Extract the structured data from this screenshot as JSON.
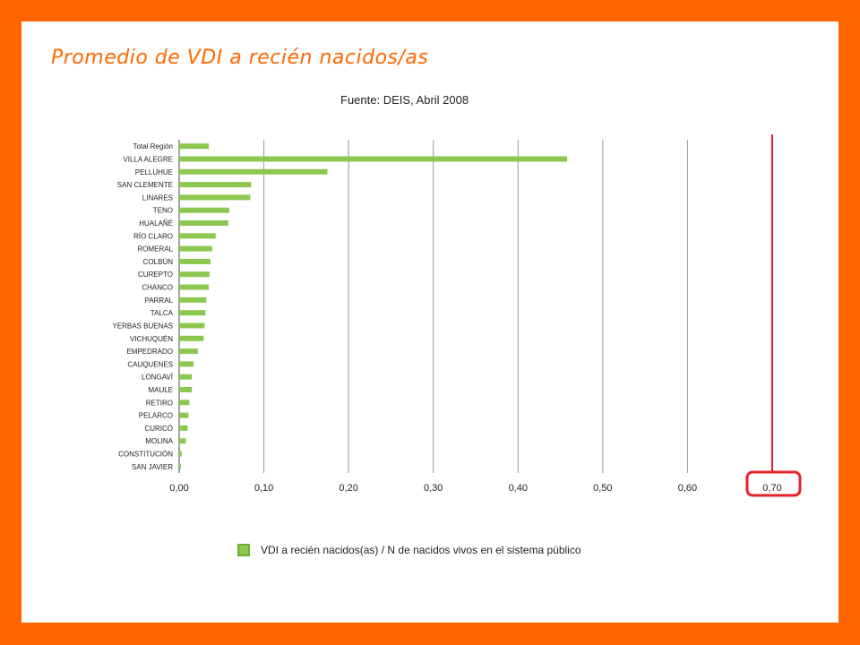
{
  "slide": {
    "title": "Promedio de VDI a recién nacidos/as",
    "subtitle": "Fuente: DEIS,  Abril 2008"
  },
  "colors": {
    "background": "#ff6600",
    "title": "#ff6600",
    "bar": "#8cc850",
    "highlight": "#e8202a"
  },
  "chart_data": {
    "type": "bar",
    "orientation": "horizontal",
    "categories": [
      "Total Región",
      "VILLA ALEGRE",
      "PELLUHUE",
      "SAN CLEMENTE",
      "LINARES",
      "TENO",
      "HUALAÑÉ",
      "RÍO CLARO",
      "ROMERAL",
      "COLBÚN",
      "CUREPTO",
      "CHANCO",
      "PARRAL",
      "TALCA",
      "YERBAS BUENAS",
      "VICHUQUÉN",
      "EMPEDRADO",
      "CAUQUENES",
      "LONGAVÍ",
      "MAULE",
      "RETIRO",
      "PELARCO",
      "CURICÓ",
      "MOLINA",
      "CONSTITUCIÓN",
      "SAN JAVIER"
    ],
    "series": [
      {
        "name": "VDI a recién nacidos(as) /  N de nacidos vivos en el sistema público",
        "values": [
          0.035,
          0.458,
          0.175,
          0.085,
          0.084,
          0.059,
          0.058,
          0.043,
          0.039,
          0.037,
          0.036,
          0.035,
          0.032,
          0.031,
          0.03,
          0.029,
          0.022,
          0.017,
          0.015,
          0.015,
          0.012,
          0.011,
          0.01,
          0.008,
          0.003,
          0.002
        ]
      }
    ],
    "xlim": [
      0,
      0.7
    ],
    "xticks": [
      "0,00",
      "0,10",
      "0,20",
      "0,30",
      "0,40",
      "0,50",
      "0,60",
      "0,70"
    ],
    "grid": "vertical",
    "legend": "bottom",
    "annotation": "0,70 highlighted with a red box and red vertical line"
  }
}
